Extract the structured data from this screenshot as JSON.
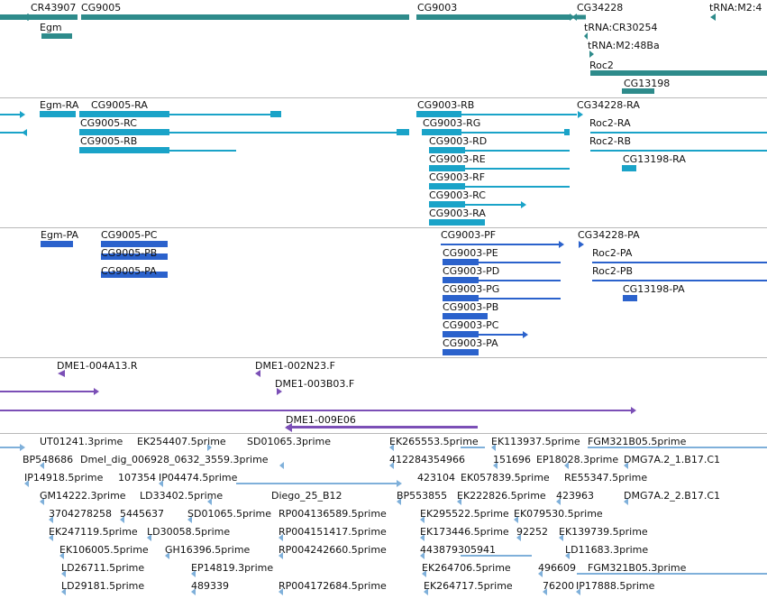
{
  "colors": {
    "gene": "#2e8b8b",
    "mrna": "#1aa3c8",
    "protein": "#2b62cc",
    "clone": "#7b4fb6",
    "est": "#7fb0da",
    "separator": "#b8b8b8"
  },
  "tracks": [
    {
      "name": "gene",
      "color_key": "gene",
      "labels": [
        "CR43907",
        "CG9005",
        "CG9003",
        "CG34228",
        "tRNA:M2:4",
        "Egm",
        "tRNA:CR30254",
        "tRNA:M2:48Ba",
        "Roc2",
        "CG13198"
      ]
    },
    {
      "name": "mrna",
      "color_key": "mrna",
      "labels": [
        "Egm-RA",
        "CG9005-RA",
        "CG9003-RB",
        "CG34228-RA",
        "CG9005-RC",
        "CG9003-RG",
        "Roc2-RA",
        "CG9005-RB",
        "CG9003-RD",
        "Roc2-RB",
        "CG9003-RE",
        "CG13198-RA",
        "CG9003-RF",
        "CG9003-RC",
        "CG9003-RA"
      ]
    },
    {
      "name": "protein",
      "color_key": "protein",
      "labels": [
        "Egm-PA",
        "CG9005-PC",
        "CG9003-PF",
        "CG34228-PA",
        "CG9005-PB",
        "CG9003-PE",
        "Roc2-PA",
        "CG9005-PA",
        "CG9003-PD",
        "Roc2-PB",
        "CG9003-PG",
        "CG13198-PA",
        "CG9003-PB",
        "CG9003-PC",
        "CG9003-PA"
      ]
    },
    {
      "name": "clone",
      "color_key": "clone",
      "labels": [
        "DME1-004A13.R",
        "DME1-002N23.F",
        "DME1-003B03.F",
        "DME1-009E06"
      ]
    },
    {
      "name": "est",
      "color_key": "est",
      "labels": [
        "UT01241.3prime",
        "EK254407.5prime",
        "SD01065.3prime",
        "EK265553.5prime",
        "EK113937.5prime",
        "FGM321B05.5prime",
        "BP548686",
        "Dmel_dig_006928_0632_3559.3prime",
        "412284354966",
        "151696",
        "EP18028.3prime",
        "DMG7A.2_1.B17.C1",
        "IP14918.5prime",
        "107354",
        "IP04474.5prime",
        "423104",
        "EK057839.5prime",
        "RE55347.5prime",
        "GM14222.3prime",
        "LD33402.5prime",
        "Diego_25_B12",
        "BP553855",
        "EK222826.5prime",
        "423963",
        "DMG7A.2_2.B17.C1",
        "3704278258",
        "5445637",
        "SD01065.5prime",
        "RP004136589.5prime",
        "EK295522.5prime",
        "EK079530.5prime",
        "EK247119.5prime",
        "LD30058.5prime",
        "RP004151417.5prime",
        "EK173446.5prime",
        "92252",
        "EK139739.5prime",
        "EK106005.5prime",
        "GH16396.5prime",
        "RP004242660.5prime",
        "443879305941",
        "LD11683.3prime",
        "LD26711.5prime",
        "EP14819.3prime",
        "EK264706.5prime",
        "496609",
        "FGM321B05.3prime",
        "LD29181.5prime",
        "489339",
        "RP004172684.5prime",
        "EK264717.5prime",
        "76200",
        "IP17888.5prime"
      ]
    }
  ]
}
